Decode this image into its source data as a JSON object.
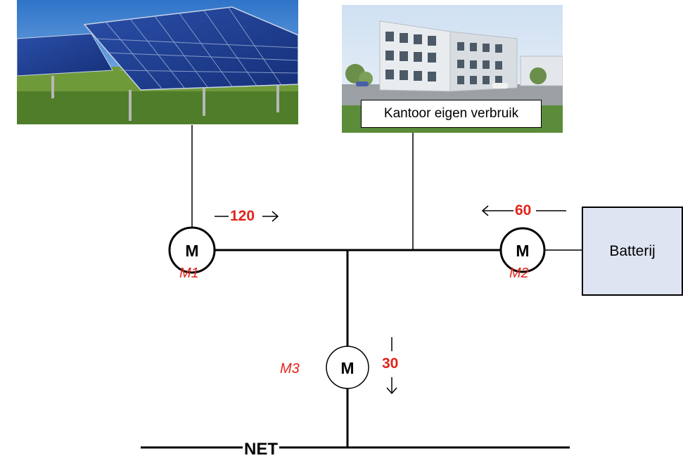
{
  "office": {
    "caption": "Kantoor eigen verbruik"
  },
  "battery": {
    "label": "Batterij"
  },
  "grid": {
    "label": "NET"
  },
  "meters": {
    "m1": {
      "letter": "M",
      "name": "M1"
    },
    "m2": {
      "letter": "M",
      "name": "M2"
    },
    "m3": {
      "letter": "M",
      "name": "M3"
    }
  },
  "flows": {
    "solar_to_bus": {
      "value": "120",
      "direction": "right"
    },
    "battery_to_bus": {
      "value": "60",
      "direction": "left"
    },
    "bus_to_grid": {
      "value": "30",
      "direction": "down"
    }
  },
  "colors": {
    "accent_red": "#e2231a",
    "battery_fill": "#dfe4f3",
    "line": "#000000"
  },
  "images": {
    "solar": "solar-panel-photo",
    "office": "office-building-photo"
  }
}
